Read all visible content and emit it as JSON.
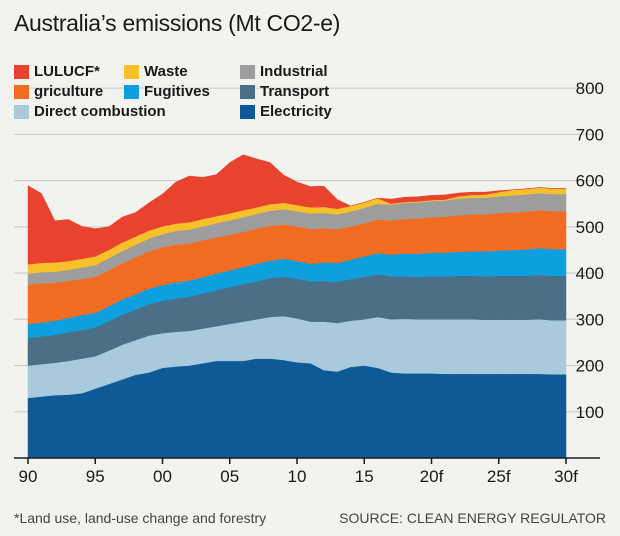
{
  "title": "Australia’s emissions (Mt CO2-e)",
  "footnote": "*Land use, land-use change and forestry",
  "source": "SOURCE: CLEAN ENERGY REGULATOR",
  "chart_data": {
    "type": "area",
    "stacked": true,
    "title": "Australia’s emissions (Mt CO2-e)",
    "x_tick_labels": [
      "90",
      "95",
      "00",
      "05",
      "10",
      "15",
      "20f",
      "25f",
      "30f"
    ],
    "y_tick_labels": [
      "100",
      "200",
      "300",
      "400",
      "500",
      "600",
      "700",
      "800"
    ],
    "ylim": [
      0,
      850
    ],
    "grid": true,
    "y_axis_position": "right",
    "legend_position": "top-left",
    "x": [
      1990,
      1991,
      1992,
      1993,
      1994,
      1995,
      1996,
      1997,
      1998,
      1999,
      2000,
      2001,
      2002,
      2003,
      2004,
      2005,
      2006,
      2007,
      2008,
      2009,
      2010,
      2011,
      2012,
      2013,
      2014,
      2015,
      2016,
      2017,
      2018,
      2019,
      2020,
      2021,
      2022,
      2023,
      2024,
      2025,
      2026,
      2027,
      2028,
      2029,
      2030
    ],
    "series": [
      {
        "name": "Electricity",
        "color": "#0d5a96",
        "values": [
          130,
          133,
          136,
          137,
          140,
          150,
          160,
          170,
          180,
          185,
          195,
          198,
          200,
          205,
          210,
          210,
          210,
          215,
          215,
          212,
          207,
          205,
          190,
          187,
          197,
          200,
          195,
          185,
          183,
          183,
          183,
          182,
          182,
          182,
          182,
          182,
          182,
          182,
          182,
          181,
          181
        ]
      },
      {
        "name": "Direct combustion",
        "color": "#a9c9dc",
        "values": [
          70,
          70,
          70,
          73,
          75,
          70,
          72,
          75,
          75,
          80,
          75,
          75,
          75,
          75,
          75,
          80,
          85,
          85,
          90,
          95,
          95,
          90,
          105,
          105,
          100,
          100,
          110,
          115,
          118,
          117,
          117,
          118,
          118,
          118,
          117,
          117,
          117,
          117,
          118,
          117,
          117
        ]
      },
      {
        "name": "Transport",
        "color": "#4a6f86",
        "values": [
          60,
          60,
          60,
          62,
          62,
          62,
          64,
          65,
          66,
          68,
          70,
          72,
          74,
          76,
          78,
          80,
          81,
          82,
          84,
          85,
          86,
          87,
          88,
          89,
          90,
          92,
          92,
          93,
          92,
          92,
          93,
          93,
          94,
          94,
          94,
          95,
          95,
          95,
          96,
          96,
          96
        ]
      },
      {
        "name": "Fugitives",
        "color": "#0e9fde",
        "values": [
          30,
          30,
          31,
          31,
          32,
          32,
          32,
          33,
          33,
          34,
          34,
          35,
          35,
          35,
          36,
          36,
          37,
          38,
          38,
          39,
          38,
          38,
          40,
          41,
          42,
          44,
          46,
          47,
          49,
          50,
          51,
          51,
          52,
          53,
          54,
          55,
          56,
          57,
          58,
          58,
          58
        ]
      },
      {
        "name": "Agriculture",
        "color": "#f26c22",
        "values": [
          85,
          85,
          82,
          80,
          78,
          78,
          78,
          78,
          80,
          80,
          82,
          82,
          80,
          80,
          78,
          77,
          76,
          76,
          75,
          74,
          75,
          75,
          74,
          73,
          72,
          72,
          73,
          74,
          75,
          76,
          77,
          78,
          79,
          80,
          80,
          81,
          81,
          82,
          82,
          82,
          82
        ]
      },
      {
        "name": "Industrial",
        "color": "#9d9d9d",
        "values": [
          24,
          24,
          24,
          24,
          25,
          25,
          26,
          27,
          27,
          28,
          28,
          29,
          30,
          30,
          31,
          31,
          32,
          32,
          33,
          33,
          33,
          34,
          33,
          32,
          32,
          33,
          34,
          34,
          35,
          35,
          35,
          35,
          36,
          36,
          36,
          36,
          37,
          37,
          37,
          37,
          37
        ]
      },
      {
        "name": "Waste",
        "color": "#f7c12a",
        "values": [
          20,
          20,
          20,
          19,
          19,
          19,
          18,
          18,
          18,
          17,
          17,
          16,
          16,
          16,
          15,
          15,
          15,
          14,
          14,
          14,
          13,
          13,
          13,
          12,
          12,
          12,
          12,
          12,
          12,
          12,
          12,
          12,
          12,
          12,
          12,
          12,
          12,
          12,
          12,
          12,
          12
        ]
      },
      {
        "name": "LULUCF*",
        "color": "#e8432f",
        "values": [
          170,
          150,
          90,
          90,
          70,
          60,
          50,
          55,
          52,
          60,
          70,
          90,
          100,
          90,
          90,
          110,
          120,
          105,
          90,
          60,
          50,
          45,
          45,
          20,
          0,
          0,
          0,
          -10,
          -10,
          -10,
          -10,
          -10,
          -7,
          -6,
          -5,
          -3,
          0,
          0,
          0,
          0,
          0
        ]
      }
    ]
  },
  "legend": [
    {
      "label": "LULUCF*",
      "color": "#e8432f"
    },
    {
      "label": "Waste",
      "color": "#f7c12a"
    },
    {
      "label": "Industrial",
      "color": "#9d9d9d"
    },
    {
      "label": "griculture",
      "color": "#f26c22"
    },
    {
      "label": "Fugitives",
      "color": "#0e9fde"
    },
    {
      "label": "Transport",
      "color": "#4a6f86"
    },
    {
      "label": "Direct combustion",
      "color": "#a9c9dc"
    },
    {
      "label": "Electricity",
      "color": "#0d5a96"
    }
  ]
}
